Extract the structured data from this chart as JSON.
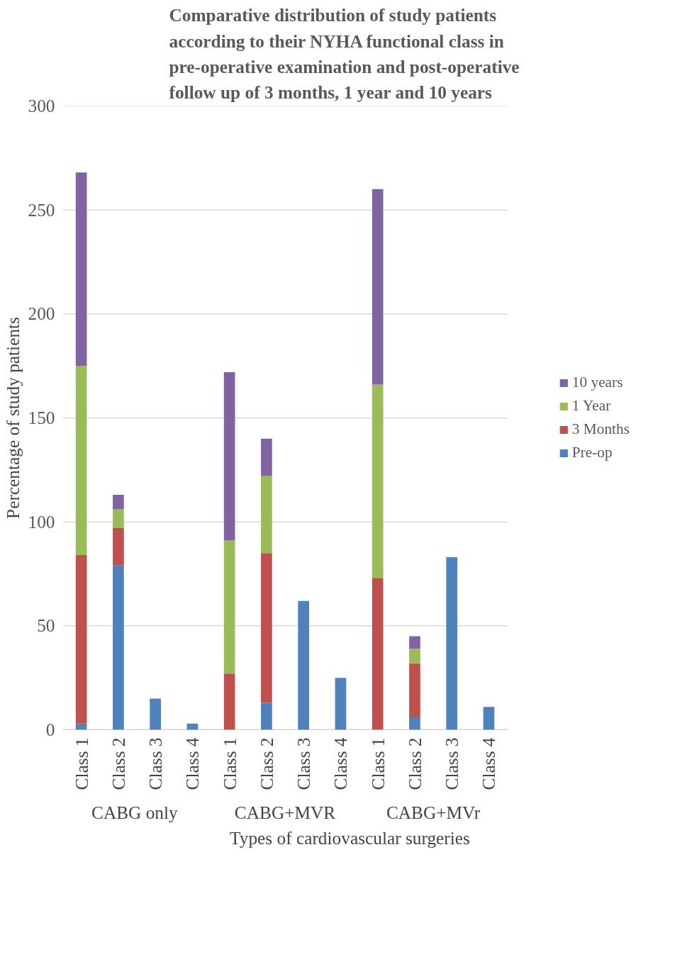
{
  "chart_data": {
    "type": "bar",
    "stacked": true,
    "title": "Comparative distribution of study patients according to their NYHA functional class in pre-operative examination and post-operative follow up of 3 months, 1 year and 10 years",
    "xlabel": "Types of cardiovascular surgeries",
    "ylabel": "Percentage of study patients",
    "categories": [
      "Class 1",
      "Class 2",
      "Class 3",
      "Class 4",
      "Class 1",
      "Class 2",
      "Class 3",
      "Class 4",
      "Class 1",
      "Class 2",
      "Class 3",
      "Class 4"
    ],
    "annotations": [
      "CABG  only",
      "CABG+MVR",
      "CABG+MVr"
    ],
    "series": [
      {
        "name": "Pre-op",
        "color": "#4f81bd",
        "values": [
          3,
          79,
          15,
          3,
          0,
          13,
          62,
          25,
          0,
          6,
          83,
          11
        ]
      },
      {
        "name": "3 Months",
        "color": "#c0504d",
        "values": [
          81,
          18,
          0,
          0,
          27,
          72,
          0,
          0,
          73,
          26,
          0,
          0
        ]
      },
      {
        "name": "1 Year",
        "color": "#9bbb59",
        "values": [
          91,
          9,
          0,
          0,
          64,
          37,
          0,
          0,
          93,
          7,
          0,
          0
        ]
      },
      {
        "name": "10 years",
        "color": "#8064a2",
        "values": [
          93,
          7,
          0,
          0,
          81,
          18,
          0,
          0,
          94,
          6,
          0,
          0
        ]
      }
    ],
    "ylim": [
      0,
      300
    ],
    "yticks": [
      0,
      50,
      100,
      150,
      200,
      250,
      300
    ],
    "grid": "y",
    "legend": "right"
  }
}
